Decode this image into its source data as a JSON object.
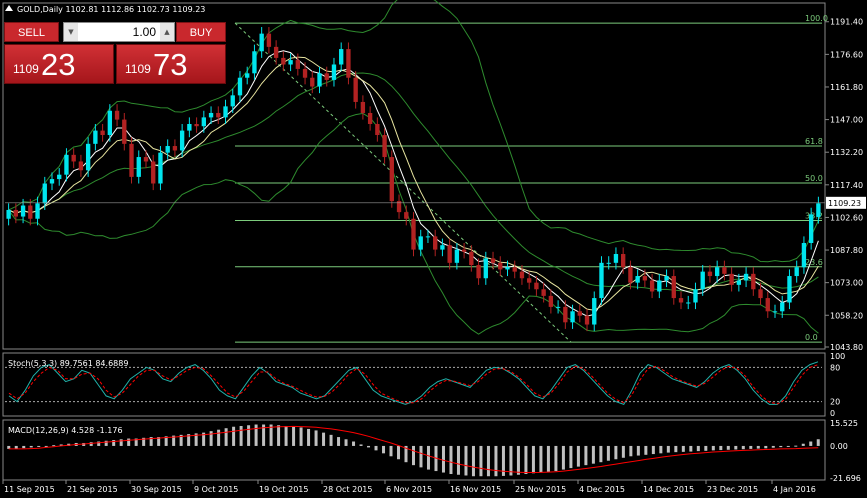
{
  "header": {
    "symbol_line": "GOLD,Daily  1102.81 1112.86 1102.73 1109.23"
  },
  "trade_panel": {
    "sell_label": "SELL",
    "buy_label": "BUY",
    "lot_value": "1.00",
    "sell_price_small": "1109",
    "sell_price_big": "23",
    "buy_price_small": "1109",
    "buy_price_big": "73"
  },
  "colors": {
    "background": "#000000",
    "bull_candle": "#00E5EE",
    "bear_candle": "#B22222",
    "fib_line": "#7CCB7C",
    "bollinger": "#2E8B2E",
    "ma_fast": "#FFFFFF",
    "ma_slow": "#E8E5A0",
    "macd_hist": "#C0C0C0",
    "macd_signal": "#FF0000",
    "stoch_main": "#20B2AA",
    "stoch_signal": "#FF0000"
  },
  "chart_data": [
    {
      "type": "candlestick",
      "title": "GOLD,Daily",
      "ohlc_header": "1102.81 1112.86 1102.73 1109.23",
      "x_ticks": [
        "11 Sep 2015",
        "21 Sep 2015",
        "30 Sep 2015",
        "9 Oct 2015",
        "19 Oct 2015",
        "28 Oct 2015",
        "6 Nov 2015",
        "16 Nov 2015",
        "25 Nov 2015",
        "4 Dec 2015",
        "14 Dec 2015",
        "23 Dec 2015",
        "4 Jan 2016"
      ],
      "y_ticks": [
        "1191.40",
        "1176.60",
        "1161.80",
        "1147.00",
        "1132.20",
        "1117.40",
        "1102.60",
        "1087.80",
        "1073.00",
        "1058.20",
        "1043.80"
      ],
      "ylim": [
        1043.8,
        1199
      ],
      "current_price": "1109.23",
      "fibonacci": [
        {
          "level": "100.0",
          "price": 1190.8
        },
        {
          "level": "61.8",
          "price": 1135.0
        },
        {
          "level": "50.0",
          "price": 1118.2
        },
        {
          "level": "38.2",
          "price": 1101.2
        },
        {
          "level": "23.6",
          "price": 1080.2
        },
        {
          "level": "0.0",
          "price": 1046.0
        }
      ],
      "close": [
        1106,
        1103,
        1108,
        1102,
        1109,
        1118,
        1120,
        1122,
        1131,
        1128,
        1124,
        1136,
        1142,
        1140,
        1151,
        1147,
        1136,
        1121,
        1130,
        1128,
        1118,
        1132,
        1135,
        1133,
        1142,
        1145,
        1144,
        1148,
        1150,
        1148,
        1153,
        1158,
        1166,
        1168,
        1178,
        1186,
        1180,
        1175,
        1172,
        1174,
        1170,
        1166,
        1162,
        1168,
        1165,
        1172,
        1179,
        1166,
        1155,
        1150,
        1145,
        1140,
        1130,
        1110,
        1105,
        1102,
        1088,
        1094,
        1094,
        1088,
        1090,
        1082,
        1088,
        1087,
        1081,
        1075,
        1084,
        1082,
        1079,
        1080,
        1078,
        1075,
        1073,
        1070,
        1067,
        1062,
        1062,
        1055,
        1060,
        1058,
        1054,
        1066,
        1082,
        1082,
        1086,
        1080,
        1073,
        1076,
        1074,
        1069,
        1074,
        1076,
        1066,
        1064,
        1064,
        1070,
        1078,
        1076,
        1080,
        1077,
        1072,
        1074,
        1077,
        1070,
        1066,
        1060,
        1060,
        1064,
        1076,
        1080,
        1091,
        1104,
        1109
      ],
      "open": [
        1102,
        1106,
        1103,
        1108,
        1102,
        1109,
        1118,
        1120,
        1122,
        1131,
        1128,
        1124,
        1136,
        1142,
        1140,
        1151,
        1147,
        1136,
        1121,
        1130,
        1128,
        1118,
        1132,
        1135,
        1133,
        1142,
        1145,
        1144,
        1148,
        1150,
        1148,
        1153,
        1158,
        1166,
        1168,
        1178,
        1186,
        1180,
        1175,
        1172,
        1174,
        1170,
        1166,
        1162,
        1168,
        1165,
        1172,
        1179,
        1166,
        1155,
        1150,
        1145,
        1140,
        1130,
        1110,
        1105,
        1102,
        1088,
        1094,
        1094,
        1088,
        1090,
        1082,
        1088,
        1087,
        1081,
        1075,
        1084,
        1082,
        1079,
        1080,
        1078,
        1075,
        1073,
        1070,
        1067,
        1062,
        1062,
        1055,
        1060,
        1058,
        1054,
        1066,
        1082,
        1082,
        1086,
        1080,
        1073,
        1076,
        1074,
        1069,
        1074,
        1076,
        1066,
        1064,
        1064,
        1070,
        1078,
        1076,
        1080,
        1077,
        1072,
        1074,
        1077,
        1070,
        1066,
        1060,
        1060,
        1064,
        1076,
        1080,
        1091,
        1102.81
      ]
    },
    {
      "type": "line",
      "title": "Stoch(5,3,3) 89.7561 84.6889",
      "y_ticks": [
        "100",
        "80",
        "20",
        "0"
      ],
      "ylim": [
        0,
        100
      ],
      "series": [
        {
          "name": "main",
          "values": [
            30,
            20,
            40,
            65,
            80,
            85,
            70,
            55,
            60,
            75,
            70,
            50,
            30,
            25,
            40,
            60,
            70,
            80,
            75,
            60,
            55,
            70,
            80,
            85,
            75,
            60,
            40,
            30,
            25,
            45,
            65,
            80,
            70,
            55,
            50,
            45,
            35,
            30,
            25,
            30,
            45,
            60,
            75,
            80,
            60,
            40,
            30,
            25,
            20,
            15,
            20,
            30,
            45,
            55,
            60,
            55,
            50,
            45,
            60,
            75,
            80,
            78,
            70,
            60,
            45,
            30,
            25,
            40,
            60,
            80,
            85,
            75,
            60,
            45,
            30,
            20,
            15,
            40,
            70,
            85,
            80,
            70,
            60,
            55,
            50,
            45,
            55,
            70,
            80,
            85,
            75,
            60,
            40,
            25,
            15,
            15,
            30,
            55,
            75,
            85,
            89.76
          ]
        },
        {
          "name": "signal",
          "values": [
            35,
            25,
            35,
            55,
            70,
            80,
            75,
            60,
            60,
            68,
            70,
            60,
            40,
            28,
            35,
            50,
            65,
            75,
            75,
            65,
            58,
            65,
            75,
            80,
            78,
            65,
            50,
            35,
            28,
            38,
            55,
            72,
            72,
            60,
            52,
            47,
            40,
            33,
            28,
            29,
            38,
            52,
            68,
            78,
            68,
            50,
            35,
            28,
            22,
            18,
            18,
            25,
            38,
            50,
            57,
            56,
            52,
            48,
            55,
            68,
            77,
            78,
            73,
            63,
            50,
            35,
            28,
            35,
            52,
            72,
            82,
            78,
            65,
            50,
            35,
            24,
            18,
            32,
            58,
            78,
            82,
            74,
            64,
            57,
            52,
            47,
            52,
            63,
            75,
            82,
            78,
            65,
            46,
            30,
            19,
            16,
            24,
            45,
            66,
            80,
            84.69
          ]
        }
      ]
    },
    {
      "type": "bar",
      "title": "MACD(12,26,9) 4.528 -1.176",
      "y_ticks": [
        "15.525",
        "0.00",
        "-21.696"
      ],
      "ylim": [
        -21.696,
        15.525
      ],
      "series": [
        {
          "name": "histogram",
          "values": [
            -2,
            -2,
            -1.5,
            -1,
            -0.5,
            0,
            0.5,
            1,
            1.5,
            2,
            2,
            2.5,
            3,
            3.5,
            4,
            4.5,
            5,
            5,
            5.5,
            6,
            6,
            6.5,
            7,
            7.5,
            8,
            8.5,
            9,
            10,
            11,
            12,
            13,
            13.5,
            14,
            14.5,
            14.5,
            14.5,
            14,
            13.5,
            13,
            12.5,
            11.5,
            10.5,
            9,
            7.5,
            6,
            4.5,
            3,
            1,
            -1,
            -3,
            -5,
            -7,
            -9,
            -11,
            -13,
            -14.5,
            -16,
            -17,
            -18,
            -19,
            -19.5,
            -20,
            -20.5,
            -20.5,
            -20.5,
            -20.5,
            -20.3,
            -20,
            -19.5,
            -19,
            -18.5,
            -18,
            -17.5,
            -17,
            -16,
            -15,
            -14,
            -13,
            -12,
            -11,
            -10,
            -9,
            -8,
            -7,
            -6.5,
            -6,
            -5.5,
            -5,
            -4.5,
            -4.2,
            -4,
            -3.8,
            -3.5,
            -3.3,
            -3,
            -2.8,
            -2.6,
            -2.4,
            -2.2,
            -2,
            -1.8,
            -1.6,
            -1.2,
            -0.8,
            -0.5,
            0.2,
            1.5,
            3,
            4.53
          ]
        },
        {
          "name": "signal",
          "values": [
            -2,
            -2,
            -2,
            -1.8,
            -1.5,
            -1,
            -0.5,
            0,
            0.5,
            1,
            1.3,
            1.7,
            2.1,
            2.6,
            3,
            3.4,
            3.8,
            4.2,
            4.6,
            5,
            5.3,
            5.7,
            6,
            6.4,
            6.8,
            7.2,
            7.6,
            8.1,
            8.7,
            9.3,
            10,
            10.6,
            11.2,
            11.8,
            12.3,
            12.7,
            13,
            13.1,
            13.2,
            13.1,
            12.9,
            12.6,
            12.1,
            11.5,
            10.8,
            10,
            9,
            7.8,
            6.5,
            5,
            3.5,
            2,
            0.3,
            -1.5,
            -3.3,
            -5,
            -6.7,
            -8.2,
            -9.7,
            -11,
            -12.2,
            -13.3,
            -14.3,
            -15.2,
            -16,
            -16.6,
            -17.1,
            -17.5,
            -17.8,
            -18,
            -18,
            -17.9,
            -17.7,
            -17.4,
            -17,
            -16.5,
            -15.9,
            -15.3,
            -14.6,
            -13.9,
            -13.1,
            -12.3,
            -11.5,
            -10.7,
            -9.9,
            -9.1,
            -8.4,
            -7.7,
            -7,
            -6.4,
            -5.8,
            -5.3,
            -4.9,
            -4.5,
            -4.1,
            -3.8,
            -3.5,
            -3.2,
            -3,
            -2.8,
            -2.6,
            -2.4,
            -2.2,
            -2,
            -1.9,
            -1.8,
            -1.6,
            -1.4,
            -1.18
          ]
        }
      ]
    }
  ]
}
